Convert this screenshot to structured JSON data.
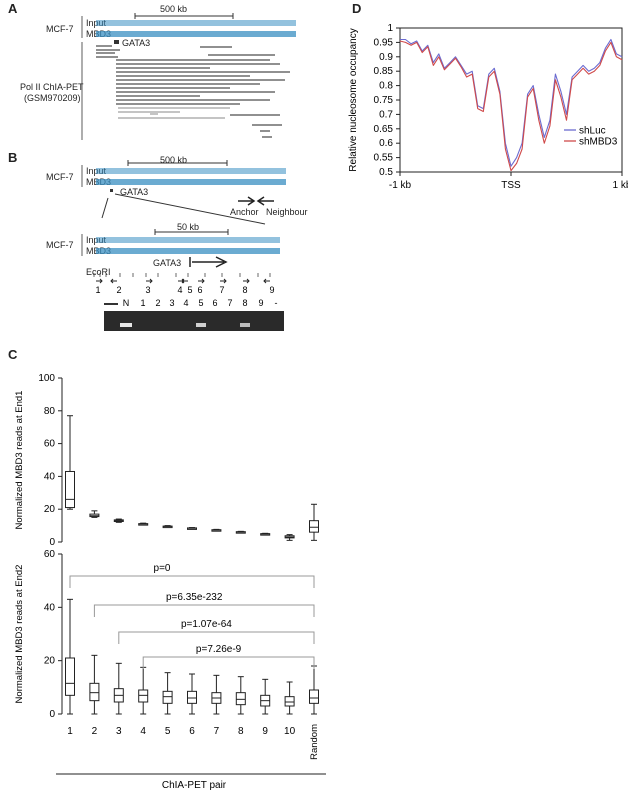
{
  "panel_labels": {
    "a": "A",
    "b": "B",
    "c": "C",
    "d": "D"
  },
  "panel_a": {
    "cell_line": "MCF-7",
    "track_input": "Input",
    "track_mbd3": "MBD3",
    "scale_label": "500 kb",
    "gene_label": "GATA3",
    "chiapet_label_line1": "Pol II ChIA-PET",
    "chiapet_label_line2": "(GSM970209)"
  },
  "panel_b": {
    "cell_line": "MCF-7",
    "track_input": "Input",
    "track_mbd3": "MBD3",
    "scale_label_top": "500 kb",
    "gene_label_top": "GATA3",
    "anchor_label": "Anchor",
    "neighbour_label": "Neighbour",
    "scale_label_zoom": "50 kb",
    "gene_label_zoom": "GATA3",
    "ecori_label": "EcoRI",
    "primer_numbers": [
      "1",
      "2",
      "3",
      "4",
      "5",
      "6",
      "7",
      "8",
      "9"
    ],
    "gel_lanes": [
      "N",
      "1",
      "2",
      "3",
      "4",
      "5",
      "6",
      "7",
      "8",
      "9",
      "-"
    ]
  },
  "chart_data": [
    {
      "type": "line",
      "panel": "D",
      "ylabel": "Relative nucleosome occupancy",
      "xlabel": "",
      "x_ticks": [
        "-1 kb",
        "TSS",
        "1 kb"
      ],
      "ylim": [
        0.5,
        1.0
      ],
      "y_ticks": [
        "0.5",
        "0.55",
        "0.6",
        "0.65",
        "0.7",
        "0.75",
        "0.8",
        "0.85",
        "0.9",
        "0.95",
        "1"
      ],
      "legend_position": "bottom-right",
      "series": [
        {
          "name": "shLuc",
          "color": "#6b6bd0",
          "x": [
            -1000,
            -950,
            -900,
            -850,
            -800,
            -750,
            -700,
            -650,
            -600,
            -550,
            -500,
            -450,
            -400,
            -350,
            -300,
            -250,
            -200,
            -150,
            -100,
            -50,
            0,
            50,
            100,
            150,
            200,
            250,
            300,
            350,
            400,
            450,
            500,
            550,
            600,
            650,
            700,
            750,
            800,
            850,
            900,
            950,
            1000
          ],
          "y": [
            0.96,
            0.96,
            0.945,
            0.955,
            0.92,
            0.94,
            0.88,
            0.91,
            0.86,
            0.88,
            0.9,
            0.87,
            0.84,
            0.85,
            0.73,
            0.72,
            0.84,
            0.86,
            0.78,
            0.6,
            0.52,
            0.55,
            0.6,
            0.77,
            0.8,
            0.7,
            0.62,
            0.68,
            0.84,
            0.78,
            0.7,
            0.83,
            0.85,
            0.87,
            0.85,
            0.86,
            0.88,
            0.93,
            0.96,
            0.91,
            0.9
          ]
        },
        {
          "name": "shMBD3",
          "color": "#d04a4a",
          "x": [
            -1000,
            -950,
            -900,
            -850,
            -800,
            -750,
            -700,
            -650,
            -600,
            -550,
            -500,
            -450,
            -400,
            -350,
            -300,
            -250,
            -200,
            -150,
            -100,
            -50,
            0,
            50,
            100,
            150,
            200,
            250,
            300,
            350,
            400,
            450,
            500,
            550,
            600,
            650,
            700,
            750,
            800,
            850,
            900,
            950,
            1000
          ],
          "y": [
            0.955,
            0.95,
            0.94,
            0.95,
            0.915,
            0.935,
            0.87,
            0.9,
            0.855,
            0.875,
            0.895,
            0.865,
            0.83,
            0.84,
            0.72,
            0.71,
            0.83,
            0.85,
            0.77,
            0.58,
            0.505,
            0.53,
            0.58,
            0.76,
            0.79,
            0.68,
            0.6,
            0.66,
            0.82,
            0.76,
            0.68,
            0.82,
            0.84,
            0.86,
            0.84,
            0.85,
            0.87,
            0.92,
            0.95,
            0.9,
            0.89
          ]
        }
      ]
    },
    {
      "type": "box",
      "panel": "C-top",
      "ylabel": "Normalized MBD3 reads at End1",
      "ylim": [
        0,
        100
      ],
      "y_ticks": [
        "0",
        "20",
        "40",
        "60",
        "80",
        "100"
      ],
      "categories": [
        "1",
        "2",
        "3",
        "4",
        "5",
        "6",
        "7",
        "8",
        "9",
        "10",
        "Random"
      ],
      "boxes": [
        {
          "min": 20,
          "q1": 21,
          "median": 26,
          "q3": 43,
          "max": 77
        },
        {
          "min": 15,
          "q1": 15.5,
          "median": 16,
          "q3": 17,
          "max": 19
        },
        {
          "min": 12,
          "q1": 12.5,
          "median": 13,
          "q3": 13.5,
          "max": 14
        },
        {
          "min": 10.5,
          "q1": 10.8,
          "median": 11,
          "q3": 11.2,
          "max": 11.5
        },
        {
          "min": 9,
          "q1": 9.2,
          "median": 9.5,
          "q3": 9.7,
          "max": 10
        },
        {
          "min": 8,
          "q1": 8.2,
          "median": 8.4,
          "q3": 8.6,
          "max": 8.8
        },
        {
          "min": 7,
          "q1": 7.1,
          "median": 7.3,
          "q3": 7.5,
          "max": 7.7
        },
        {
          "min": 5.8,
          "q1": 6,
          "median": 6.1,
          "q3": 6.3,
          "max": 6.5
        },
        {
          "min": 4.5,
          "q1": 4.7,
          "median": 4.9,
          "q3": 5.1,
          "max": 5.3
        },
        {
          "min": 1,
          "q1": 2.5,
          "median": 3,
          "q3": 3.8,
          "max": 4.5
        },
        {
          "min": 1,
          "q1": 6,
          "median": 9,
          "q3": 13,
          "max": 23
        }
      ]
    },
    {
      "type": "box",
      "panel": "C-bottom",
      "ylabel": "Normalized MBD3 reads at End2",
      "xlabel": "ChIA-PET pair",
      "ylim": [
        0,
        60
      ],
      "y_ticks": [
        "0",
        "20",
        "40",
        "60"
      ],
      "categories": [
        "1",
        "2",
        "3",
        "4",
        "5",
        "6",
        "7",
        "8",
        "9",
        "10",
        "Random"
      ],
      "boxes": [
        {
          "min": 0,
          "q1": 7,
          "median": 11.5,
          "q3": 21,
          "max": 43
        },
        {
          "min": 0,
          "q1": 5,
          "median": 8,
          "q3": 11.5,
          "max": 22
        },
        {
          "min": 0,
          "q1": 4.5,
          "median": 7,
          "q3": 9.5,
          "max": 19
        },
        {
          "min": 0,
          "q1": 4.5,
          "median": 7,
          "q3": 9,
          "max": 17.5
        },
        {
          "min": 0,
          "q1": 4,
          "median": 6.5,
          "q3": 8.5,
          "max": 15.5
        },
        {
          "min": 0,
          "q1": 4,
          "median": 6,
          "q3": 8.5,
          "max": 15
        },
        {
          "min": 0,
          "q1": 4,
          "median": 6,
          "q3": 8,
          "max": 14.5
        },
        {
          "min": 0,
          "q1": 3.5,
          "median": 5.5,
          "q3": 8,
          "max": 14
        },
        {
          "min": 0,
          "q1": 3,
          "median": 5,
          "q3": 7,
          "max": 13
        },
        {
          "min": 0,
          "q1": 3,
          "median": 4.5,
          "q3": 6.5,
          "max": 12
        },
        {
          "min": 0,
          "q1": 4,
          "median": 6,
          "q3": 9,
          "max": 18
        }
      ],
      "pvalues": [
        "p=0",
        "p=6.35e-232",
        "p=1.07e-64",
        "p=7.26e-9"
      ]
    }
  ]
}
